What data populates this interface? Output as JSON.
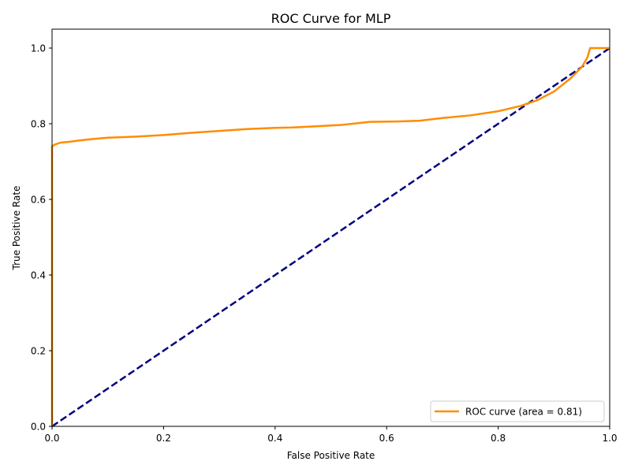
{
  "chart_data": {
    "type": "line",
    "title": "ROC Curve for MLP",
    "xlabel": "False Positive Rate",
    "ylabel": "True Positive Rate",
    "xlim": [
      0.0,
      1.0
    ],
    "ylim": [
      0.0,
      1.05
    ],
    "x_ticks": [
      "0.0",
      "0.2",
      "0.4",
      "0.6",
      "0.8",
      "1.0"
    ],
    "y_ticks": [
      "0.0",
      "0.2",
      "0.4",
      "0.6",
      "0.8",
      "1.0"
    ],
    "grid": false,
    "legend_position": "lower right",
    "series": [
      {
        "name": "ROC curve (area = 0.81)",
        "color": "#ff8c00",
        "linestyle": "solid",
        "points": [
          [
            0.0,
            0.0
          ],
          [
            0.0,
            0.74
          ],
          [
            0.005,
            0.745
          ],
          [
            0.015,
            0.75
          ],
          [
            0.03,
            0.752
          ],
          [
            0.05,
            0.756
          ],
          [
            0.07,
            0.759
          ],
          [
            0.1,
            0.763
          ],
          [
            0.15,
            0.766
          ],
          [
            0.2,
            0.77
          ],
          [
            0.25,
            0.776
          ],
          [
            0.3,
            0.781
          ],
          [
            0.35,
            0.786
          ],
          [
            0.4,
            0.789
          ],
          [
            0.43,
            0.79
          ],
          [
            0.47,
            0.793
          ],
          [
            0.52,
            0.797
          ],
          [
            0.57,
            0.805
          ],
          [
            0.62,
            0.806
          ],
          [
            0.66,
            0.808
          ],
          [
            0.7,
            0.815
          ],
          [
            0.75,
            0.822
          ],
          [
            0.8,
            0.833
          ],
          [
            0.84,
            0.847
          ],
          [
            0.87,
            0.862
          ],
          [
            0.9,
            0.885
          ],
          [
            0.93,
            0.92
          ],
          [
            0.95,
            0.95
          ],
          [
            0.96,
            0.975
          ],
          [
            0.965,
            1.0
          ],
          [
            1.0,
            1.0
          ]
        ]
      },
      {
        "name": "",
        "color": "#000080",
        "linestyle": "dashed",
        "points": [
          [
            0.0,
            0.0
          ],
          [
            1.0,
            1.0
          ]
        ]
      }
    ]
  }
}
